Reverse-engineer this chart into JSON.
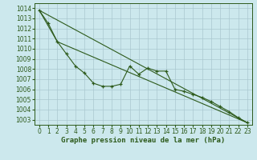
{
  "title": "Graphe pression niveau de la mer (hPa)",
  "bg_color": "#cce8ed",
  "grid_color": "#aac8d0",
  "line_color": "#2d5a1b",
  "xlim": [
    -0.5,
    23.5
  ],
  "ylim": [
    1002.5,
    1014.5
  ],
  "yticks": [
    1003,
    1004,
    1005,
    1006,
    1007,
    1008,
    1009,
    1010,
    1011,
    1012,
    1013,
    1014
  ],
  "xticks": [
    0,
    1,
    2,
    3,
    4,
    5,
    6,
    7,
    8,
    9,
    10,
    11,
    12,
    13,
    14,
    15,
    16,
    17,
    18,
    19,
    20,
    21,
    22,
    23
  ],
  "line1_x": [
    0,
    1,
    2,
    3,
    4,
    5,
    6,
    7,
    8,
    9,
    10,
    11,
    12,
    13,
    14,
    15,
    16,
    17,
    18,
    19,
    20,
    21,
    22,
    23
  ],
  "line1_y": [
    1013.8,
    1012.5,
    1010.7,
    1009.5,
    1008.3,
    1007.6,
    1006.6,
    1006.3,
    1006.3,
    1006.5,
    1008.3,
    1007.5,
    1008.1,
    1007.8,
    1007.8,
    1006.0,
    1005.8,
    1005.5,
    1005.2,
    1004.8,
    1004.3,
    1003.8,
    1003.2,
    1002.7
  ],
  "line2_x": [
    0,
    23
  ],
  "line2_y": [
    1013.8,
    1002.7
  ],
  "line3_x": [
    0,
    2,
    23
  ],
  "line3_y": [
    1013.8,
    1010.7,
    1002.7
  ],
  "tick_fontsize": 5.5,
  "xlabel_fontsize": 6.5
}
